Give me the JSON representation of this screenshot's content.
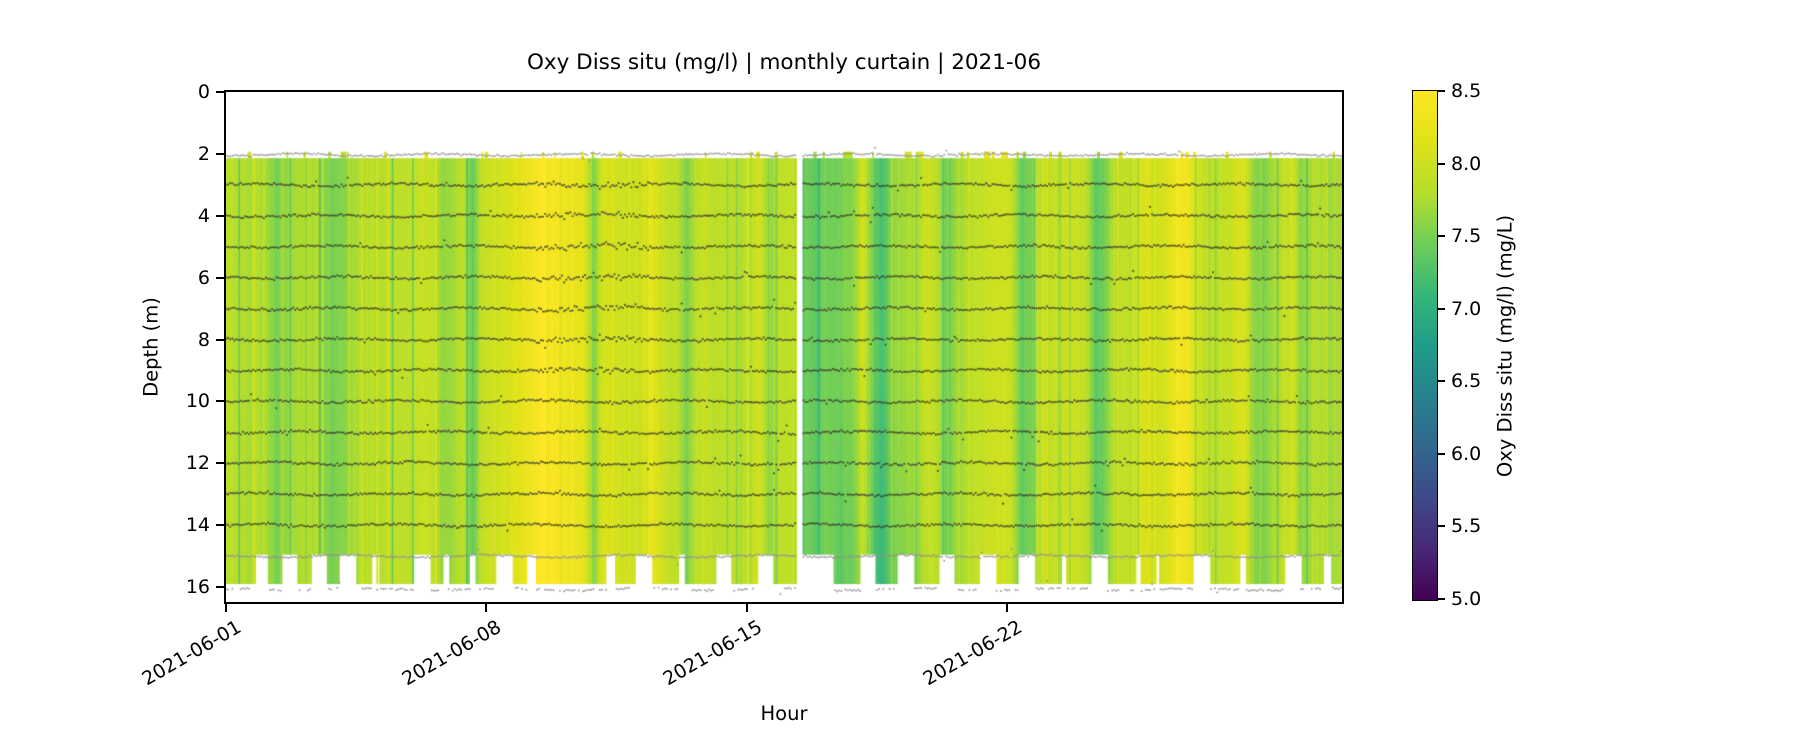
{
  "figure": {
    "title": "Oxy Diss situ (mg/l) | monthly curtain | 2021-06",
    "background_color": "#ffffff",
    "text_color": "#000000"
  },
  "axes": {
    "xlabel": "Hour",
    "ylabel": "Depth (m)",
    "y_ticks": [
      0,
      2,
      4,
      6,
      8,
      10,
      12,
      14,
      16
    ],
    "y_max": 16.48,
    "x_span_days": 30,
    "x_ticks": [
      {
        "label": "2021-06-01",
        "day": 0
      },
      {
        "label": "2021-06-08",
        "day": 7
      },
      {
        "label": "2021-06-15",
        "day": 14
      },
      {
        "label": "2021-06-22",
        "day": 21
      }
    ]
  },
  "colorbar": {
    "label": "Oxy Diss situ (mg/l) (mg/L)",
    "vmin": 5.0,
    "vmax": 8.5,
    "colormap": "viridis",
    "anchors": [
      "#440154",
      "#482878",
      "#3e4989",
      "#31688e",
      "#26828e",
      "#1f9e89",
      "#35b779",
      "#6ece58",
      "#b5de2b",
      "#dfe318",
      "#fde725"
    ],
    "ticks": [
      {
        "label": "8.5",
        "value": 8.5
      },
      {
        "label": "8.0",
        "value": 8.0
      },
      {
        "label": "7.5",
        "value": 7.5
      },
      {
        "label": "7.0",
        "value": 7.0
      },
      {
        "label": "6.5",
        "value": 6.5
      },
      {
        "label": "6.0",
        "value": 6.0
      },
      {
        "label": "5.5",
        "value": 5.5
      },
      {
        "label": "5.0",
        "value": 5.0
      }
    ]
  },
  "chart_data": {
    "type": "heatmap",
    "title": "Oxy Diss situ (mg/l) | monthly curtain | 2021-06",
    "xlabel": "Hour",
    "ylabel": "Depth (m)",
    "value_label": "Oxy Diss situ (mg/l) (mg/L)",
    "x_range": [
      "2021-06-01",
      "2021-07-01"
    ],
    "ylim": [
      0,
      16.48
    ],
    "vmin": 5.0,
    "vmax": 8.5,
    "colormap": "viridis",
    "curtain_top_m": 2.14,
    "curtain_bottom_m": 14.95,
    "deep_extent_m": 15.9,
    "sensor_depths_m": [
      2,
      3,
      4,
      5,
      6,
      7,
      8,
      9,
      10,
      11,
      12,
      13,
      14,
      15,
      16
    ],
    "values_6h": [
      7.85,
      7.8,
      7.75,
      7.8,
      7.7,
      7.5,
      7.65,
      7.75,
      7.8,
      7.75,
      7.6,
      7.5,
      7.55,
      7.7,
      7.8,
      7.85,
      7.8,
      7.85,
      7.9,
      7.85,
      7.9,
      8.0,
      7.85,
      7.6,
      7.75,
      7.9,
      7.35,
      7.95,
      8.0,
      8.05,
      8.1,
      8.2,
      8.3,
      8.45,
      8.5,
      8.35,
      8.3,
      8.25,
      8.2,
      7.45,
      8.1,
      8.05,
      8.0,
      8.0,
      8.0,
      8.25,
      8.1,
      7.9,
      7.9,
      7.5,
      7.85,
      7.95,
      7.85,
      7.9,
      7.85,
      7.8,
      7.95,
      8.0,
      7.5,
      7.85,
      7.9,
      7.85,
      7.45,
      7.35,
      7.5,
      7.45,
      7.55,
      7.6,
      8.05,
      7.5,
      7.2,
      7.55,
      7.7,
      7.75,
      7.8,
      8.0,
      7.85,
      7.4,
      7.7,
      7.8,
      7.9,
      7.95,
      8.0,
      8.05,
      7.95,
      7.4,
      7.5,
      7.85,
      7.9,
      7.95,
      8.0,
      7.95,
      7.85,
      7.35,
      7.5,
      7.8,
      7.9,
      7.95,
      8.1,
      8.15,
      8.0,
      8.2,
      8.4,
      8.3,
      8.0,
      7.9,
      7.85,
      7.9,
      8.05,
      8.15,
      7.6,
      7.5,
      7.7,
      7.85,
      8.1,
      7.6,
      7.75,
      7.8,
      7.7,
      7.75
    ],
    "data_gap_days": [
      [
        15.33,
        15.5
      ]
    ],
    "bottom_gap_days": [
      [
        0.78,
        1.12
      ],
      [
        1.5,
        1.93
      ],
      [
        2.28,
        2.72
      ],
      [
        3.05,
        3.5
      ],
      [
        3.93,
        4.04
      ],
      [
        4.08,
        4.12
      ],
      [
        5.05,
        5.5
      ],
      [
        5.83,
        5.98
      ],
      [
        6.55,
        6.72
      ],
      [
        7.25,
        7.72
      ],
      [
        8.1,
        8.32
      ],
      [
        10.22,
        10.45
      ],
      [
        11.0,
        11.45
      ],
      [
        12.15,
        12.35
      ],
      [
        13.15,
        13.6
      ],
      [
        14.28,
        14.72
      ],
      [
        15.5,
        16.35
      ],
      [
        17.05,
        17.45
      ],
      [
        18.05,
        18.5
      ],
      [
        19.15,
        19.6
      ],
      [
        20.25,
        20.7
      ],
      [
        21.3,
        21.75
      ],
      [
        22.45,
        22.6
      ],
      [
        23.25,
        23.7
      ],
      [
        24.45,
        24.6
      ],
      [
        25.0,
        25.08
      ],
      [
        26.0,
        26.45
      ],
      [
        27.25,
        27.4
      ],
      [
        28.45,
        28.9
      ],
      [
        29.5,
        29.7
      ]
    ],
    "high_scatter_days": [
      8.3,
      11.4
    ]
  }
}
